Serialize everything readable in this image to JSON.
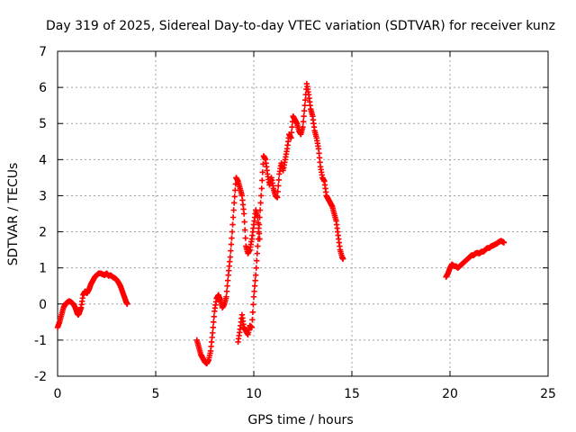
{
  "chart_data": {
    "type": "scatter",
    "title": "Day 319 of 2025, Sidereal Day-to-day VTEC variation (SDTVAR) for receiver kunz",
    "xlabel": "GPS time / hours",
    "ylabel": "SDTVAR / TECUs",
    "xlim": [
      0,
      25
    ],
    "ylim": [
      -2,
      7
    ],
    "x_ticks": [
      0,
      5,
      10,
      15,
      20,
      25
    ],
    "y_ticks": [
      -2,
      -1,
      0,
      1,
      2,
      3,
      4,
      5,
      6,
      7
    ],
    "grid": true,
    "marker": "plus",
    "color": "#ff0000",
    "series": [
      {
        "name": "SDTVAR",
        "segments": [
          {
            "x": [
              0.0,
              0.1,
              0.2,
              0.3,
              0.4,
              0.5,
              0.6,
              0.7,
              0.8,
              0.9,
              1.0,
              1.05,
              1.1,
              1.2,
              1.3,
              1.4,
              1.5,
              1.6,
              1.7,
              1.8,
              1.9,
              2.0,
              2.1,
              2.2,
              2.3,
              2.4,
              2.5,
              2.6,
              2.7,
              2.8,
              2.9,
              3.0,
              3.1,
              3.2,
              3.3,
              3.4,
              3.5,
              3.55
            ],
            "y": [
              -0.65,
              -0.5,
              -0.3,
              -0.1,
              0.0,
              0.05,
              0.08,
              0.05,
              0.0,
              -0.1,
              -0.25,
              -0.3,
              -0.25,
              -0.1,
              0.25,
              0.35,
              0.3,
              0.4,
              0.55,
              0.65,
              0.75,
              0.8,
              0.85,
              0.85,
              0.82,
              0.8,
              0.85,
              0.78,
              0.8,
              0.75,
              0.72,
              0.68,
              0.6,
              0.5,
              0.35,
              0.2,
              0.05,
              0.0
            ]
          },
          {
            "x": [
              7.1,
              7.2,
              7.3,
              7.4,
              7.5,
              7.6,
              7.7,
              7.8,
              7.9,
              8.0,
              8.1,
              8.2,
              8.3,
              8.4,
              8.5,
              8.6,
              8.7,
              8.8,
              8.9,
              9.0,
              9.1,
              9.2,
              9.3,
              9.4,
              9.5,
              9.6,
              9.7,
              9.8,
              9.9,
              10.0,
              10.1,
              10.2,
              10.3
            ],
            "y": [
              -1.0,
              -1.2,
              -1.4,
              -1.5,
              -1.6,
              -1.65,
              -1.55,
              -1.3,
              -0.8,
              -0.2,
              0.15,
              0.25,
              0.1,
              -0.1,
              0.0,
              0.2,
              0.8,
              1.3,
              2.0,
              2.8,
              3.5,
              3.4,
              3.2,
              3.0,
              2.5,
              1.6,
              1.4,
              1.5,
              1.8,
              2.2,
              2.6,
              2.4,
              1.8
            ]
          },
          {
            "x": [
              9.2,
              9.3,
              9.4,
              9.5,
              9.6,
              9.7,
              9.8,
              9.9,
              10.0,
              10.1,
              10.2,
              10.3,
              10.4,
              10.5,
              10.6,
              10.7,
              10.8,
              10.9,
              11.0,
              11.1,
              11.2,
              11.3,
              11.4,
              11.5,
              11.6,
              11.7,
              11.8,
              11.9,
              12.0,
              12.1,
              12.2,
              12.3,
              12.4,
              12.5,
              12.6,
              12.7,
              12.8,
              12.9,
              13.0,
              13.1,
              13.2,
              13.3,
              13.4,
              13.5,
              13.6,
              13.7,
              13.8,
              13.9,
              14.0,
              14.1,
              14.2,
              14.3,
              14.4,
              14.5,
              14.55
            ],
            "y": [
              -1.05,
              -0.7,
              -0.3,
              -0.65,
              -0.75,
              -0.85,
              -0.6,
              -0.65,
              0.2,
              0.8,
              1.6,
              2.4,
              3.2,
              4.1,
              4.0,
              3.6,
              3.3,
              3.5,
              3.2,
              3.0,
              2.95,
              3.6,
              3.9,
              3.7,
              4.0,
              4.3,
              4.7,
              4.6,
              5.2,
              5.1,
              5.0,
              4.8,
              4.7,
              4.9,
              5.5,
              6.1,
              5.8,
              5.4,
              5.2,
              4.8,
              4.6,
              4.3,
              3.8,
              3.5,
              3.4,
              3.0,
              2.9,
              2.8,
              2.7,
              2.5,
              2.3,
              1.9,
              1.5,
              1.3,
              1.25
            ]
          },
          {
            "x": [
              19.8,
              19.9,
              20.0,
              20.1,
              20.2,
              20.3,
              20.4,
              20.5,
              20.6,
              20.7,
              20.8,
              20.9,
              21.0,
              21.1,
              21.2,
              21.3,
              21.4,
              21.5,
              21.6,
              21.7,
              21.8,
              21.9,
              22.0,
              22.1,
              22.2,
              22.3,
              22.4,
              22.5,
              22.6,
              22.7,
              22.75
            ],
            "y": [
              0.75,
              0.85,
              1.0,
              1.1,
              1.05,
              1.05,
              1.0,
              1.05,
              1.1,
              1.15,
              1.2,
              1.25,
              1.3,
              1.35,
              1.35,
              1.4,
              1.42,
              1.4,
              1.45,
              1.45,
              1.5,
              1.55,
              1.55,
              1.6,
              1.62,
              1.65,
              1.68,
              1.72,
              1.75,
              1.72,
              1.7
            ]
          }
        ]
      }
    ]
  }
}
